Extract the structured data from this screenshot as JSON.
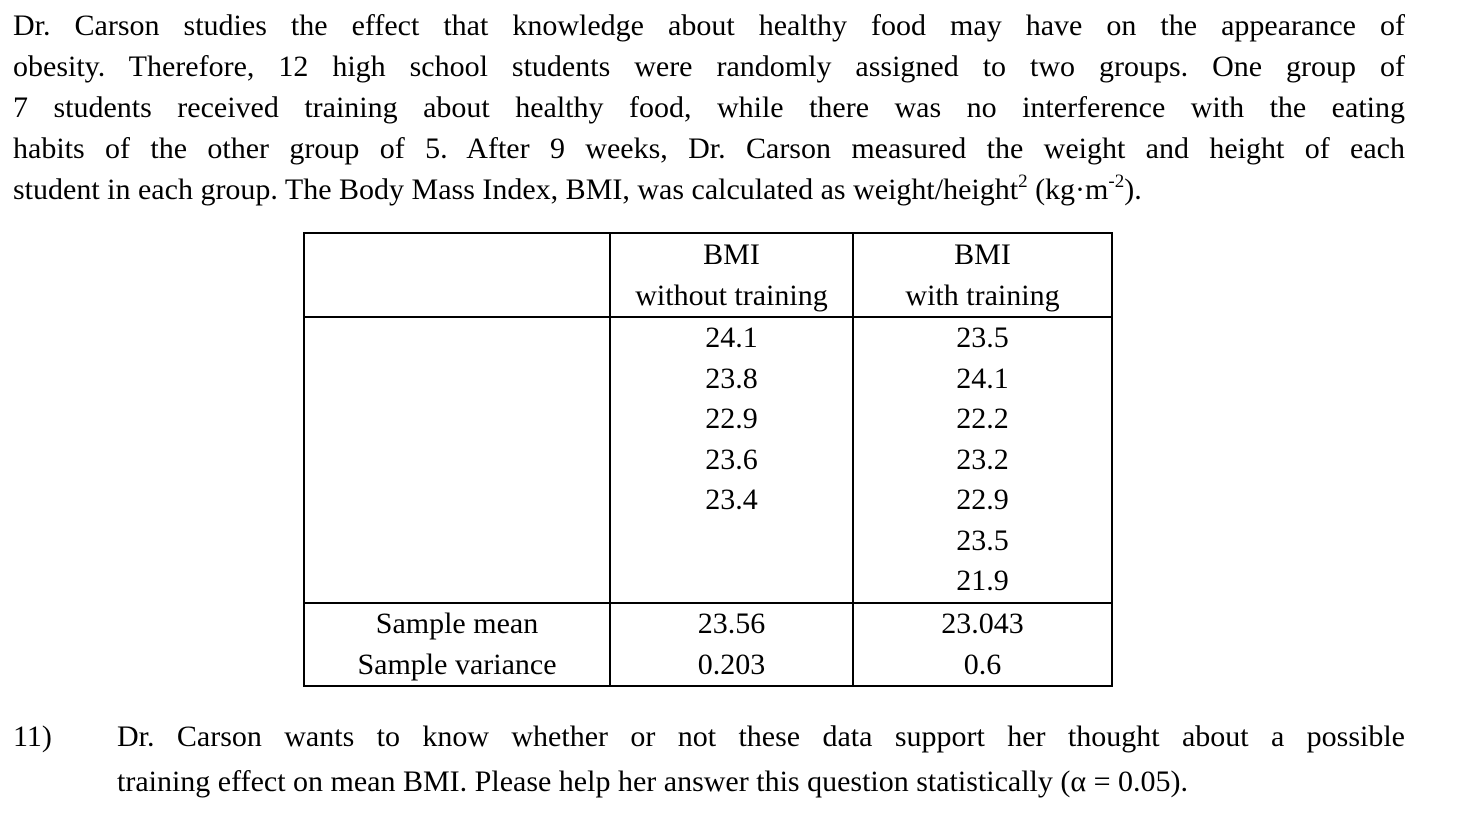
{
  "paragraph": {
    "lines": [
      "Dr. Carson studies the effect that knowledge about healthy food may have on the appearance of",
      "obesity. Therefore, 12 high school students were randomly assigned to two groups. One group of",
      "7 students received training about healthy food, while there was no interference with the eating",
      "habits of the other group of 5. After 9 weeks, Dr. Carson measured the weight and height of each"
    ],
    "last_line": {
      "pre": "student in each group. The Body Mass Index, BMI, was calculated as weight/height",
      "sup1": "2",
      "mid": " (kg·m",
      "sup2": "-2",
      "post": ")."
    }
  },
  "table": {
    "col2_header": {
      "line1": "BMI",
      "line2": "without training"
    },
    "col3_header": {
      "line1": "BMI",
      "line2": "with training"
    },
    "without_training": [
      "24.1",
      "23.8",
      "22.9",
      "23.6",
      "23.4"
    ],
    "with_training": [
      "23.5",
      "24.1",
      "22.2",
      "23.2",
      "22.9",
      "23.5",
      "21.9"
    ],
    "stats": [
      {
        "label": "Sample mean",
        "without": "23.56",
        "with": "23.043"
      },
      {
        "label": "Sample variance",
        "without": "0.203",
        "with": "0.6"
      }
    ]
  },
  "question": {
    "number": "11)",
    "lines": [
      "Dr. Carson wants to know whether or not these data support her thought about a possible",
      "training effect on mean BMI. Please help her answer this question statistically (α = 0.05)."
    ]
  }
}
